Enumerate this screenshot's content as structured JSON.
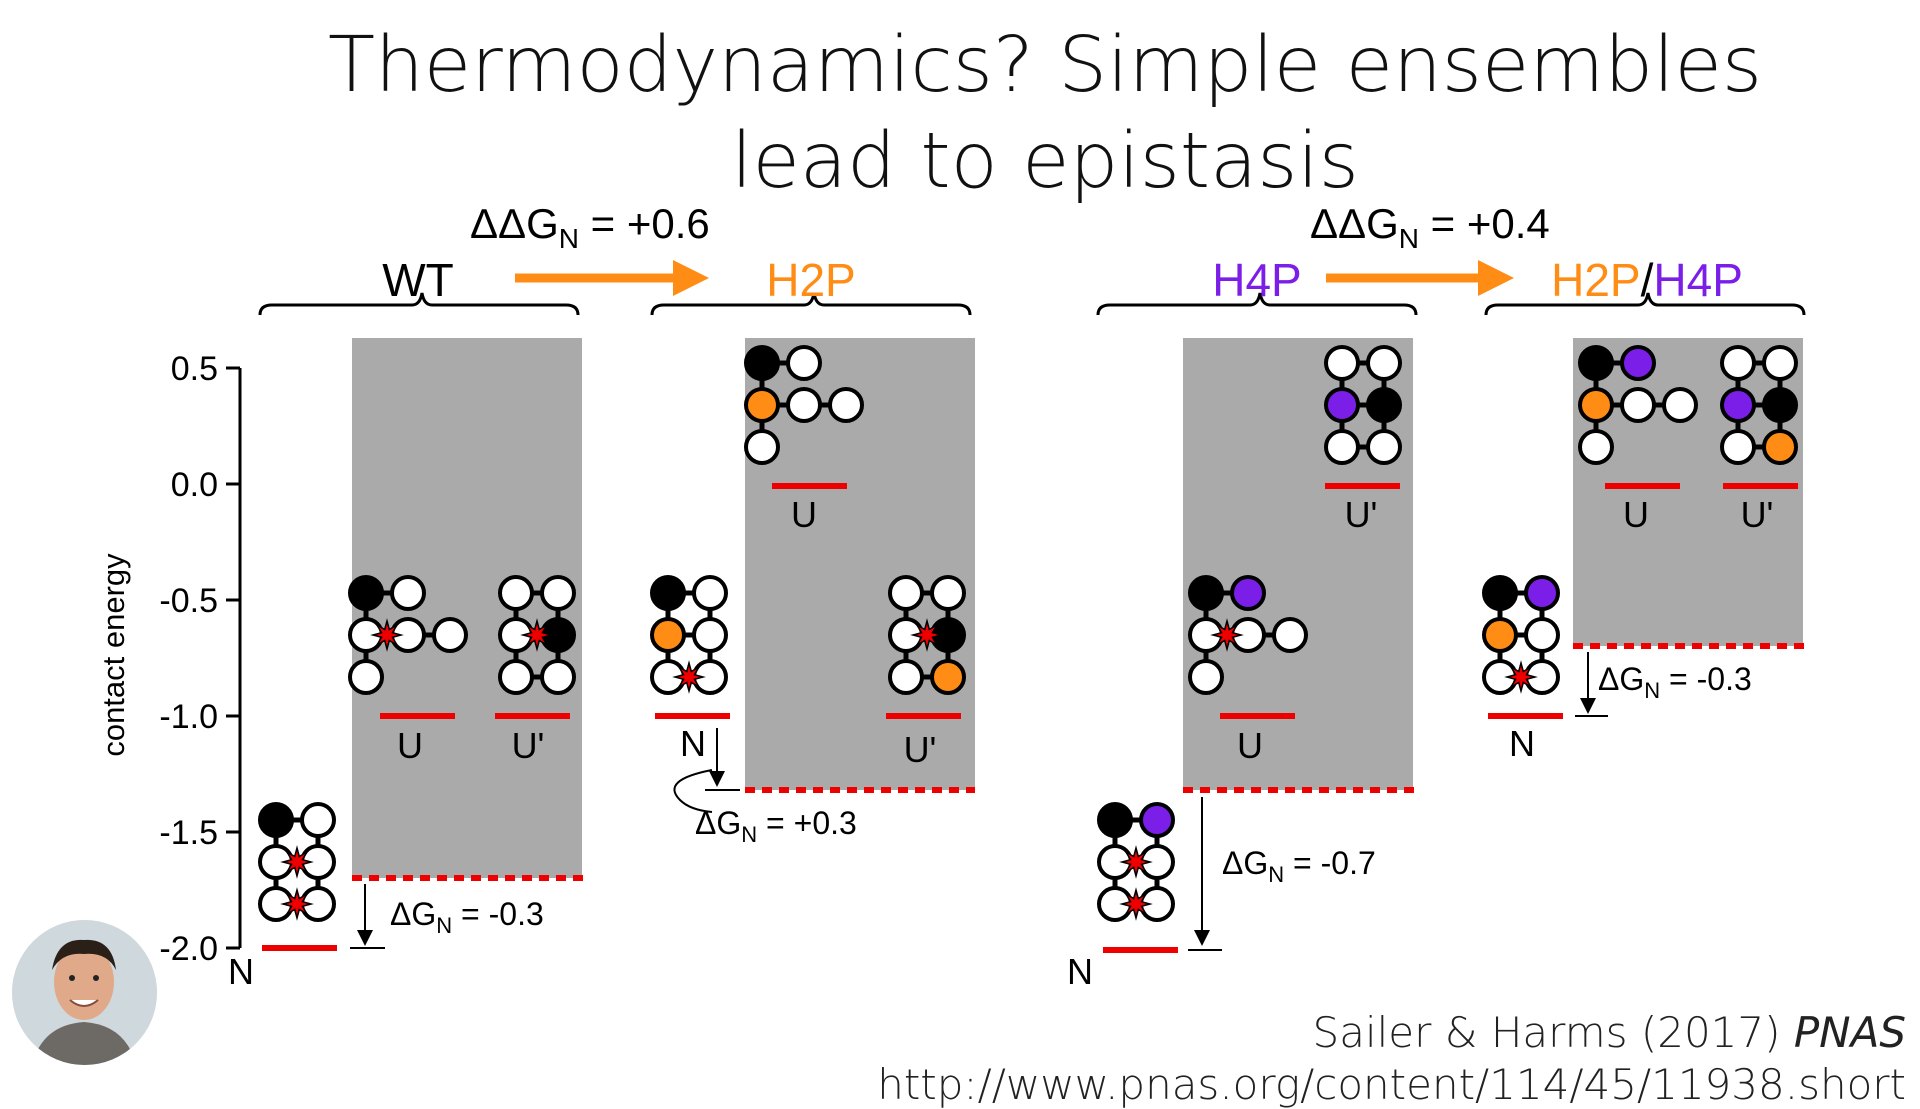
{
  "title": {
    "line1": "Thermodynamics? Simple ensembles",
    "line2": "lead to epistasis"
  },
  "colors": {
    "orange": "#FF8C14",
    "purple": "#7B1FE8",
    "red": "#EE0000",
    "grey": "#AAAAAA",
    "black": "#000000"
  },
  "axis": {
    "label": "contact energy",
    "ticks": [
      "0.5",
      "0.0",
      "-0.5",
      "-1.0",
      "-1.5",
      "-2.0"
    ]
  },
  "left_pair": {
    "ddg": "ΔΔG",
    "ddg_sub": "N",
    "ddg_val": " = +0.6",
    "from": "WT",
    "to": "H2P"
  },
  "right_pair": {
    "ddg": "ΔΔG",
    "ddg_sub": "N",
    "ddg_val": " = +0.4",
    "from": "H4P",
    "to_a": "H2P",
    "to_sep": "/",
    "to_b": "H4P"
  },
  "state_labels": {
    "native": "N",
    "unfolded": "U",
    "unfolded_alt": "U'"
  },
  "dg_labels": {
    "wt": {
      "sym": "ΔG",
      "sub": "N",
      "val": " = -0.3"
    },
    "h2p": {
      "sym": "ΔG",
      "sub": "N",
      "val": " = +0.3"
    },
    "h4p": {
      "sym": "ΔG",
      "sub": "N",
      "val": " = -0.7"
    },
    "double": {
      "sym": "ΔG",
      "sub": "N",
      "val": " = -0.3"
    }
  },
  "credit": {
    "authors": "Sailer & Harms (2017) ",
    "journal": "PNAS",
    "url": "http://www.pnas.org/content/114/45/11938.short"
  }
}
